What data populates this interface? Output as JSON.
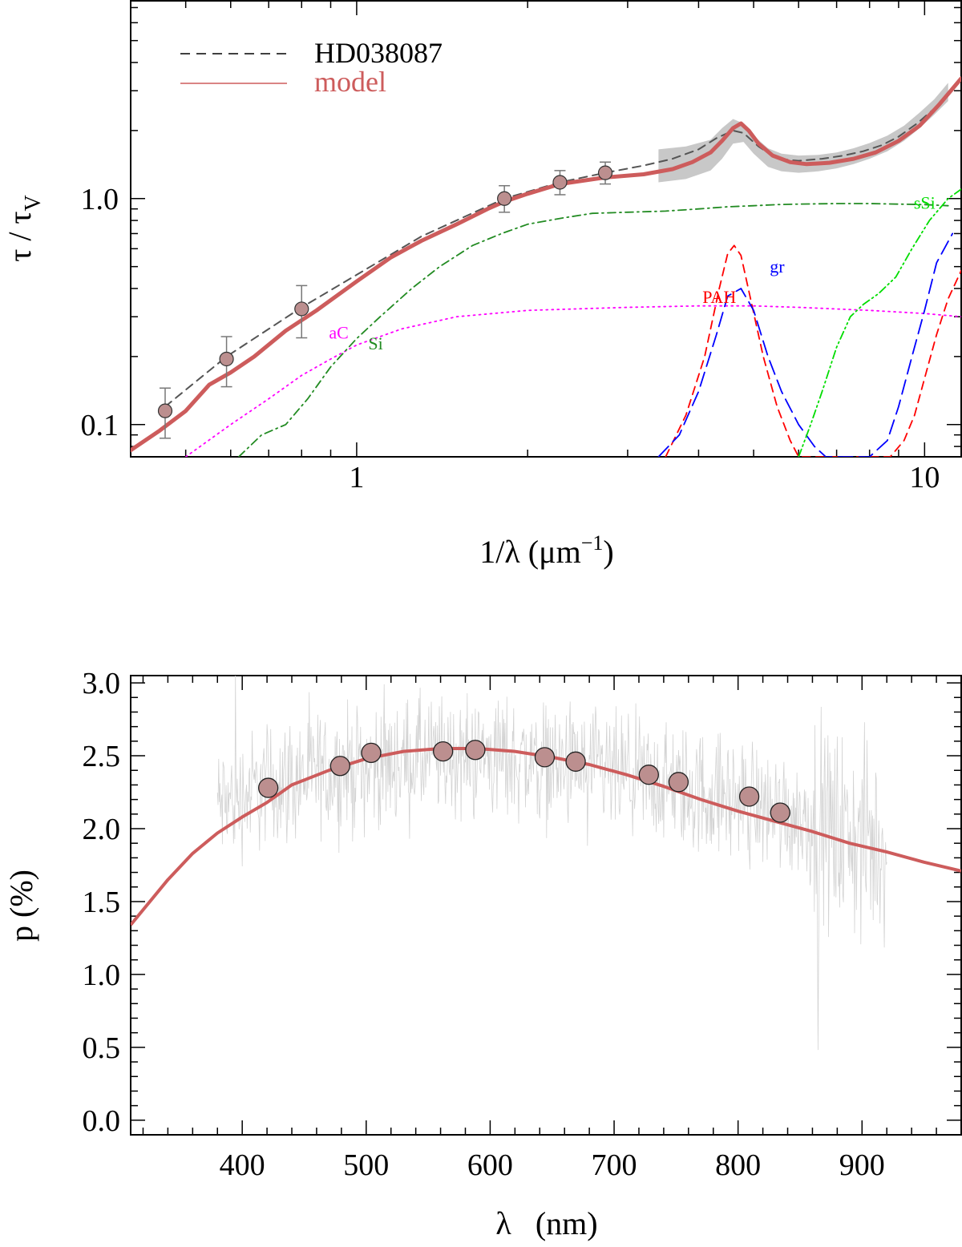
{
  "chart_data": [
    {
      "type": "line",
      "title": "",
      "xlabel": "1/λ (μm",
      "xlabel_sup": "−1",
      "xlabel_close": ")",
      "ylabel": "τ / τ",
      "ylabel_sub": "V",
      "xscale": "log",
      "yscale": "log",
      "xlim": [
        0.4,
        11.6
      ],
      "ylim": [
        0.072,
        7.5
      ],
      "x_ticks": [
        1,
        10
      ],
      "x_tick_labels": [
        "1",
        "10"
      ],
      "y_ticks": [
        0.1,
        1.0
      ],
      "y_tick_labels": [
        "0.1",
        "1.0"
      ],
      "legend": [
        {
          "label": "HD038087",
          "style": "dashed",
          "color": "#000000"
        },
        {
          "label": "model",
          "style": "solid",
          "color": "#cd5c5c"
        }
      ],
      "legend_position": "top-left",
      "observed_points": {
        "name": "photometry",
        "x": [
          0.46,
          0.59,
          0.8,
          1.82,
          2.28,
          2.74
        ],
        "y": [
          0.115,
          0.195,
          0.325,
          1.0,
          1.18,
          1.3
        ],
        "yerr_low": [
          0.028,
          0.048,
          0.083,
          0.13,
          0.14,
          0.14
        ],
        "yerr_high": [
          0.03,
          0.05,
          0.087,
          0.14,
          0.15,
          0.15
        ]
      },
      "uv_band": {
        "name": "UV extinction uncertainty",
        "x": [
          3.4,
          3.8,
          4.2,
          4.4,
          4.6,
          4.8,
          5.0,
          5.3,
          5.6,
          6.0,
          6.5,
          7.0,
          7.5,
          8.0,
          8.6,
          9.2,
          9.8,
          10.4,
          11.0
        ],
        "low": [
          1.18,
          1.22,
          1.33,
          1.5,
          1.75,
          1.78,
          1.58,
          1.38,
          1.32,
          1.3,
          1.32,
          1.36,
          1.42,
          1.5,
          1.62,
          1.8,
          2.05,
          2.35,
          2.7
        ],
        "high": [
          1.65,
          1.7,
          1.82,
          2.05,
          2.25,
          2.15,
          1.9,
          1.67,
          1.58,
          1.55,
          1.56,
          1.6,
          1.67,
          1.76,
          1.9,
          2.1,
          2.4,
          2.75,
          3.25
        ]
      },
      "series": [
        {
          "name": "HD038087",
          "style": "dashed",
          "color": "#555555",
          "x": [
            0.46,
            0.59,
            0.8,
            1.0,
            1.3,
            1.82,
            2.28,
            2.74,
            3.2,
            3.6,
            4.0,
            4.3,
            4.6,
            4.8,
            5.1,
            5.5,
            6.0,
            6.6,
            7.2,
            7.8,
            8.4,
            9.0,
            9.7,
            10.4,
            11.0
          ],
          "y": [
            0.12,
            0.2,
            0.33,
            0.46,
            0.68,
            1.0,
            1.18,
            1.3,
            1.4,
            1.5,
            1.65,
            1.85,
            2.0,
            1.95,
            1.7,
            1.5,
            1.47,
            1.5,
            1.55,
            1.62,
            1.72,
            1.88,
            2.15,
            2.5,
            2.95
          ]
        },
        {
          "name": "model",
          "style": "solid",
          "color": "#cd5c5c",
          "x": [
            0.4,
            0.45,
            0.5,
            0.55,
            0.6,
            0.66,
            0.75,
            0.85,
            1.0,
            1.15,
            1.3,
            1.5,
            1.7,
            1.82,
            2.0,
            2.28,
            2.74,
            3.2,
            3.6,
            3.9,
            4.2,
            4.4,
            4.6,
            4.75,
            4.9,
            5.1,
            5.4,
            5.8,
            6.2,
            6.8,
            7.5,
            8.2,
            9.0,
            9.8,
            10.6,
            11.6
          ],
          "y": [
            0.077,
            0.094,
            0.115,
            0.15,
            0.17,
            0.2,
            0.26,
            0.32,
            0.43,
            0.55,
            0.65,
            0.77,
            0.9,
            0.97,
            1.05,
            1.16,
            1.24,
            1.28,
            1.35,
            1.45,
            1.6,
            1.8,
            2.05,
            2.15,
            2.0,
            1.75,
            1.55,
            1.45,
            1.42,
            1.44,
            1.5,
            1.6,
            1.8,
            2.1,
            2.6,
            3.4
          ]
        },
        {
          "name": "aC",
          "style": "dotted",
          "color": "#ff00ff",
          "x": [
            0.5,
            0.6,
            0.7,
            0.8,
            0.9,
            1.0,
            1.2,
            1.5,
            2.0,
            3.0,
            4.0,
            5.0,
            6.0,
            8.0,
            10.0,
            11.6
          ],
          "y": [
            0.072,
            0.1,
            0.13,
            0.165,
            0.195,
            0.225,
            0.265,
            0.3,
            0.32,
            0.33,
            0.335,
            0.335,
            0.33,
            0.32,
            0.31,
            0.3
          ]
        },
        {
          "name": "Si",
          "style": "dashdot",
          "color": "#228b22",
          "x": [
            0.62,
            0.68,
            0.75,
            0.82,
            0.9,
            1.0,
            1.1,
            1.25,
            1.4,
            1.6,
            1.8,
            2.0,
            2.3,
            2.6,
            3.0,
            3.5,
            4.0,
            4.5,
            5.0,
            5.5,
            6.0,
            7.0,
            8.0,
            9.0,
            10.0,
            11.0
          ],
          "y": [
            0.072,
            0.09,
            0.1,
            0.13,
            0.18,
            0.24,
            0.3,
            0.4,
            0.5,
            0.62,
            0.7,
            0.77,
            0.82,
            0.86,
            0.87,
            0.88,
            0.9,
            0.92,
            0.93,
            0.94,
            0.945,
            0.95,
            0.95,
            0.945,
            0.94,
            0.93
          ]
        },
        {
          "name": "PAH",
          "style": "dashed",
          "color": "#ff0000",
          "x": [
            3.5,
            3.8,
            4.1,
            4.35,
            4.5,
            4.62,
            4.75,
            4.95,
            5.2,
            5.5,
            5.8,
            6.0,
            8.7,
            9.2,
            9.6,
            10.0,
            10.5,
            11.0,
            11.6
          ],
          "y": [
            0.072,
            0.11,
            0.2,
            0.4,
            0.57,
            0.62,
            0.56,
            0.35,
            0.2,
            0.12,
            0.085,
            0.072,
            0.072,
            0.085,
            0.11,
            0.16,
            0.25,
            0.36,
            0.48
          ]
        },
        {
          "name": "gr",
          "style": "longdash",
          "color": "#0000ff",
          "x": [
            3.4,
            3.7,
            4.0,
            4.3,
            4.5,
            4.75,
            5.0,
            5.3,
            5.6,
            6.0,
            6.4,
            6.7,
            8.0,
            8.6,
            9.0,
            9.5,
            10.0,
            10.5,
            11.2
          ],
          "y": [
            0.072,
            0.09,
            0.14,
            0.25,
            0.37,
            0.4,
            0.32,
            0.2,
            0.14,
            0.1,
            0.08,
            0.072,
            0.072,
            0.085,
            0.12,
            0.2,
            0.32,
            0.52,
            0.7
          ]
        },
        {
          "name": "sSi",
          "style": "dashdotdot",
          "color": "#00dd00",
          "x": [
            6.0,
            6.3,
            6.6,
            7.0,
            7.4,
            7.8,
            8.3,
            8.9,
            9.5,
            10.2,
            11.0,
            11.6
          ],
          "y": [
            0.072,
            0.1,
            0.14,
            0.22,
            0.3,
            0.34,
            0.38,
            0.45,
            0.6,
            0.8,
            1.0,
            1.1
          ]
        }
      ],
      "annotations": [
        {
          "text": "aC",
          "color": "#ff00ff"
        },
        {
          "text": "Si",
          "color": "#228b22"
        },
        {
          "text": "PAH",
          "color": "#ff0000"
        },
        {
          "text": "gr",
          "color": "#0000ff"
        },
        {
          "text": "sSi",
          "color": "#00dd00"
        }
      ]
    },
    {
      "type": "line",
      "title": "",
      "xlabel": "λ   (nm)",
      "ylabel": "p (%)",
      "xscale": "linear",
      "yscale": "linear",
      "xlim": [
        310,
        980
      ],
      "ylim": [
        -0.1,
        3.05
      ],
      "x_ticks": [
        400,
        500,
        600,
        700,
        800,
        900
      ],
      "x_tick_labels": [
        "400",
        "500",
        "600",
        "700",
        "800",
        "900"
      ],
      "y_ticks": [
        0.0,
        0.5,
        1.0,
        1.5,
        2.0,
        2.5,
        3.0
      ],
      "y_tick_labels": [
        "0.0",
        "0.5",
        "1.0",
        "1.5",
        "2.0",
        "2.5",
        "3.0"
      ],
      "spectrum": {
        "name": "spectropolarimetry",
        "color": "#d3d3d3",
        "x_range": [
          380,
          920
        ],
        "trend_x": [
          380,
          420,
          480,
          550,
          600,
          650,
          700,
          750,
          800,
          850,
          900,
          920
        ],
        "trend_y": [
          2.15,
          2.3,
          2.4,
          2.48,
          2.5,
          2.44,
          2.36,
          2.28,
          2.2,
          2.08,
          1.9,
          1.85
        ],
        "scatter_amplitude": 0.3
      },
      "series": [
        {
          "name": "model",
          "style": "solid",
          "color": "#cd5c5c",
          "x": [
            310,
            340,
            360,
            380,
            400,
            420,
            440,
            470,
            500,
            530,
            560,
            590,
            620,
            650,
            680,
            710,
            740,
            770,
            800,
            830,
            860,
            890,
            920,
            950,
            980
          ],
          "y": [
            1.34,
            1.65,
            1.83,
            1.97,
            2.08,
            2.18,
            2.3,
            2.4,
            2.48,
            2.53,
            2.55,
            2.55,
            2.53,
            2.49,
            2.44,
            2.37,
            2.29,
            2.2,
            2.12,
            2.05,
            1.98,
            1.9,
            1.84,
            1.77,
            1.71
          ]
        }
      ],
      "observed_points": {
        "name": "broadband",
        "x": [
          421,
          479,
          504,
          562,
          588,
          644,
          669,
          728,
          752,
          809,
          834
        ],
        "y": [
          2.28,
          2.43,
          2.52,
          2.53,
          2.54,
          2.49,
          2.46,
          2.37,
          2.32,
          2.22,
          2.11
        ],
        "yerr": [
          0.02,
          0.02,
          0.02,
          0.02,
          0.02,
          0.02,
          0.02,
          0.02,
          0.02,
          0.05,
          0.02
        ]
      }
    }
  ]
}
